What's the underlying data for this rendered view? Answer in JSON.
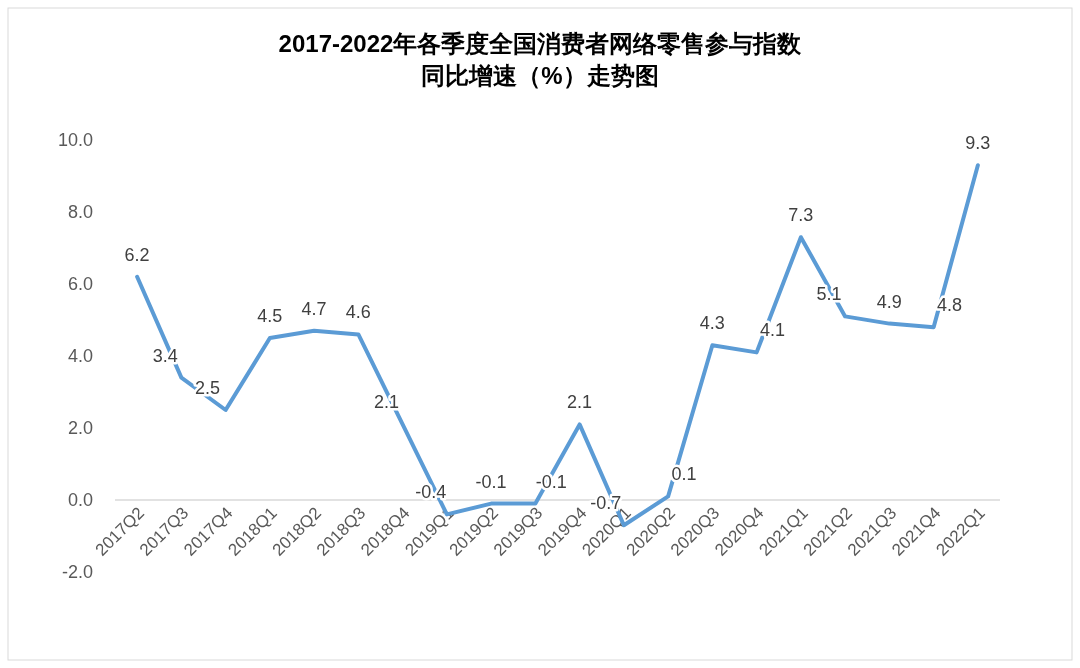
{
  "chart_data": {
    "type": "line",
    "title": "2017-2022年各季度全国消费者网络零售参与指数",
    "subtitle": "同比增速（%）走势图",
    "categories": [
      "2017Q2",
      "2017Q3",
      "2017Q4",
      "2018Q1",
      "2018Q2",
      "2018Q3",
      "2018Q4",
      "2019Q1",
      "2019Q2",
      "2019Q3",
      "2019Q4",
      "2020Q1",
      "2020Q2",
      "2020Q3",
      "2020Q4",
      "2021Q1",
      "2021Q2",
      "2021Q3",
      "2021Q4",
      "2022Q1"
    ],
    "series": [
      {
        "color": "#5b9bd5",
        "values": [
          6.2,
          3.4,
          2.5,
          4.5,
          4.7,
          4.6,
          2.1,
          -0.4,
          -0.1,
          -0.1,
          2.1,
          -0.7,
          0.1,
          4.3,
          4.1,
          7.3,
          5.1,
          4.9,
          4.8,
          9.3
        ]
      }
    ],
    "ylim": [
      -2,
      10
    ],
    "yticks": [
      {
        "value": -2,
        "label": "-2.0"
      },
      {
        "value": 0,
        "label": "0.0"
      },
      {
        "value": 2,
        "label": "2.0"
      },
      {
        "value": 4,
        "label": "4.0"
      },
      {
        "value": 6,
        "label": "6.0"
      },
      {
        "value": 8,
        "label": "8.0"
      },
      {
        "value": 10,
        "label": "10.0"
      }
    ],
    "data_labels": true
  }
}
